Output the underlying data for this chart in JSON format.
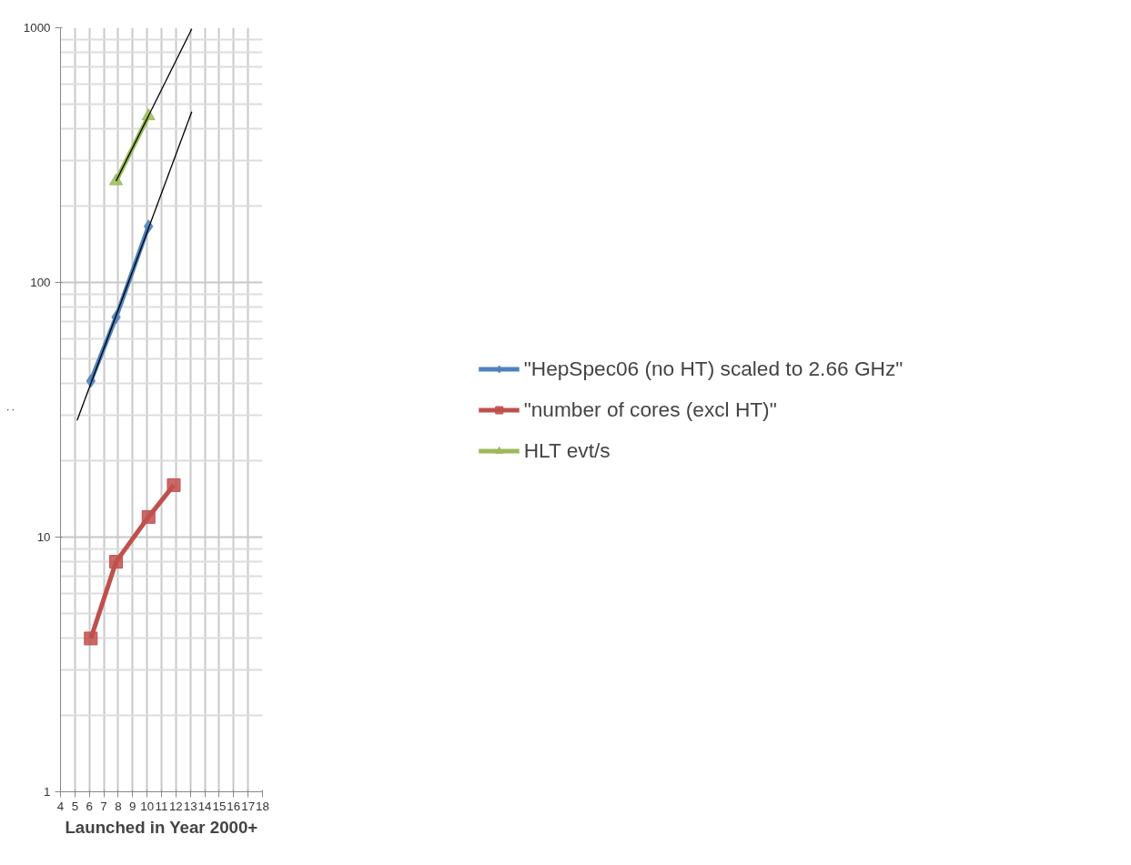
{
  "chart_data": {
    "type": "line",
    "xlabel": "Launched in Year 2000+",
    "ylabel": ":",
    "xlim": [
      4,
      18
    ],
    "xticks": [
      4,
      5,
      6,
      7,
      8,
      9,
      10,
      11,
      12,
      13,
      14,
      15,
      16,
      17,
      18
    ],
    "ylim": [
      1,
      1000
    ],
    "yticks": [
      1,
      10,
      100,
      1000
    ],
    "log": "y",
    "grid": true,
    "legend": "right",
    "series": [
      {
        "name": "\"HepSpec06 (no HT) scaled to 2.66 GHz\"",
        "color": "#4f81bd",
        "marker": "diamond",
        "x": [
          6.1,
          7.85,
          10.1
        ],
        "values": [
          41,
          73,
          166
        ]
      },
      {
        "name": "\"number of cores (excl HT)\"",
        "color": "#c0504d",
        "marker": "square",
        "x": [
          6.1,
          7.85,
          10.1,
          11.85
        ],
        "values": [
          4,
          8,
          12,
          16
        ]
      },
      {
        "name": "HLT evt/s",
        "color": "#9bbb59",
        "marker": "triangle",
        "x": [
          7.85,
          10.1
        ],
        "values": [
          250,
          450
        ]
      },
      {
        "color": "#000000",
        "marker": "none",
        "x": [
          5.15,
          13.1
        ],
        "values": [
          28.7,
          468
        ]
      },
      {
        "color": "#000000",
        "marker": "none",
        "x": [
          7.85,
          13.1
        ],
        "values": [
          250,
          990
        ]
      }
    ]
  }
}
